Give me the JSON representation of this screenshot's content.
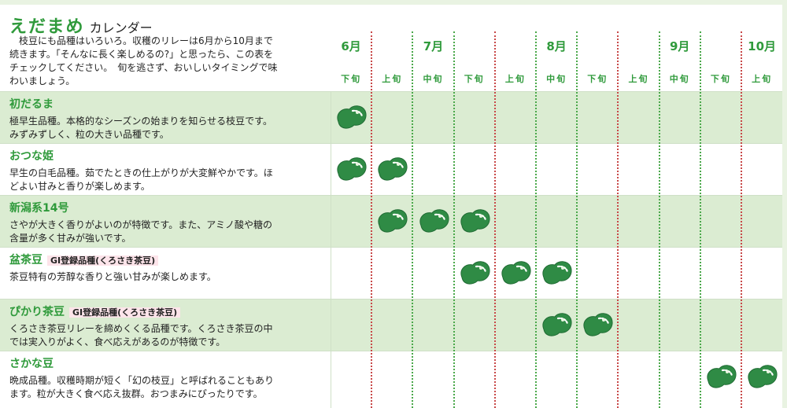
{
  "header": {
    "title_main": "えだまめ",
    "title_sub": "カレンダー",
    "description": "　枝豆にも品種はいろいろ。収穫のリレーは6月から10月まで続きます。「そんなに長く楽しめるの?」と思ったら、この表をチェックしてください。　旬を逃さず、おいしいタイミングで味わいましょう。"
  },
  "months": [
    "6月",
    "7月",
    "8月",
    "9月",
    "10月"
  ],
  "periods": [
    "下旬",
    "上旬",
    "中旬",
    "下旬",
    "上旬",
    "中旬",
    "下旬",
    "上旬",
    "中旬",
    "下旬",
    "上旬"
  ],
  "varieties": [
    {
      "name": "初だるま",
      "gi": "",
      "description": "極早生品種。本格的なシーズンの始まりを知らせる枝豆です。みずみずしく、粒の大きい品種です。",
      "harvest": [
        0
      ]
    },
    {
      "name": "おつな姫",
      "gi": "",
      "description": "早生の白毛品種。茹でたときの仕上がりが大変鮮やかです。ほどよい甘みと香りが楽しめます。",
      "harvest": [
        0,
        1
      ]
    },
    {
      "name": "新潟系14号",
      "gi": "",
      "description": "さやが大きく香りがよいのが特徴です。また、アミノ酸や糖の含量が多く甘みが強いです。",
      "harvest": [
        1,
        2,
        3
      ]
    },
    {
      "name": "盆茶豆",
      "gi": "GI登録品種(くろさき茶豆)",
      "description": "茶豆特有の芳醇な香りと強い甘みが楽しめます。",
      "harvest": [
        3,
        4,
        5
      ]
    },
    {
      "name": "ぴかり茶豆",
      "gi": "GI登録品種(くろさき茶豆)",
      "description": "くろさき茶豆リレーを締めくくる品種です。くろさき茶豆の中では実入りがよく、食べ応えがあるのが特徴です。",
      "harvest": [
        5,
        6
      ]
    },
    {
      "name": "さかな豆",
      "gi": "",
      "description": "晩成品種。収穫時期が短く「幻の枝豆」と呼ばれることもあります。粒が大きく食べ応え抜群。おつまみにぴったりです。",
      "harvest": [
        9,
        10
      ]
    }
  ],
  "colors": {
    "accent": "#2f9a3b",
    "bean": "#2f8b45",
    "row_shade": "#dbecd2"
  },
  "icon": "edamame-bean-icon"
}
